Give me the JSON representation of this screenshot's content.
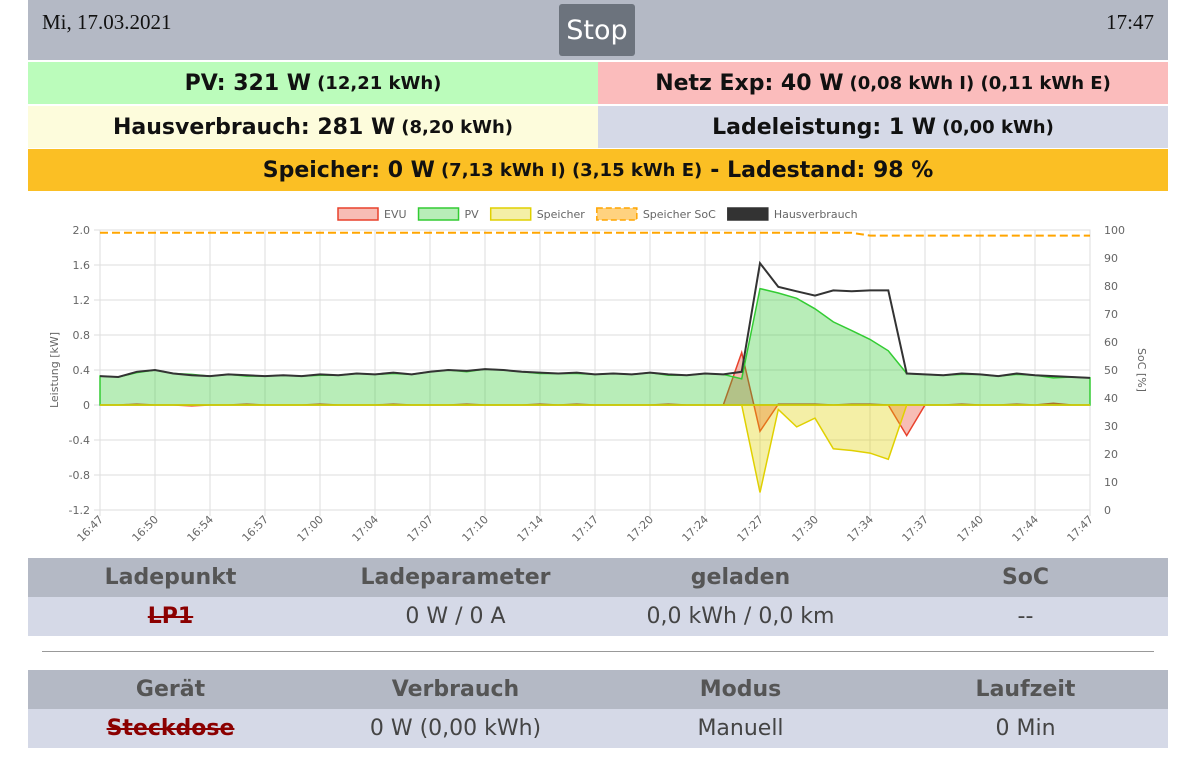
{
  "header": {
    "date": "Mi, 17.03.2021",
    "button": "Stop",
    "time": "17:47"
  },
  "status": {
    "pv": {
      "main": "PV: 321 W",
      "sub": "(12,21 kWh)"
    },
    "netz": {
      "main": "Netz Exp: 40 W",
      "sub": "(0,08 kWh I) (0,11 kWh E)"
    },
    "haus": {
      "main": "Hausverbrauch: 281 W",
      "sub": "(8,20 kWh)"
    },
    "lade": {
      "main": "Ladeleistung: 1 W",
      "sub": "(0,00 kWh)"
    },
    "speicher": {
      "main": "Speicher: 0 W",
      "sub": "(7,13 kWh I) (3,15 kWh E)",
      "tail": "- Ladestand: 98 %"
    }
  },
  "chart_data": {
    "type": "area",
    "y_label": "Leistung [kW]",
    "y2_label": "SoC [%]",
    "grid": true,
    "legend": "top",
    "categories": [
      "16:47",
      null,
      null,
      "16:50",
      null,
      null,
      "16:54",
      null,
      null,
      "16:57",
      null,
      null,
      "17:00",
      null,
      null,
      "17:04",
      null,
      null,
      "17:07",
      null,
      null,
      "17:10",
      null,
      null,
      "17:14",
      null,
      null,
      "17:17",
      null,
      null,
      "17:20",
      null,
      null,
      "17:24",
      null,
      null,
      "17:27",
      null,
      null,
      "17:30",
      null,
      null,
      "17:34",
      null,
      null,
      "17:37",
      null,
      null,
      "17:40",
      null,
      null,
      "17:44",
      null,
      null,
      "17:47"
    ],
    "ylim": [
      -1.2,
      2.0
    ],
    "yticks": [
      -1.2,
      -0.8,
      -0.4,
      0,
      0.4,
      0.8,
      1.2,
      1.6,
      {
        "value": 2,
        "label": "2.0"
      }
    ],
    "y2lim": [
      0,
      100
    ],
    "y2ticks": [
      0,
      10,
      20,
      30,
      40,
      50,
      60,
      70,
      80,
      90,
      100
    ],
    "series": [
      {
        "name": "EVU",
        "color": "#e8412c",
        "fill": true,
        "values": [
          0,
          0,
          0.01,
          0,
          0,
          -0.01,
          0,
          0,
          0.01,
          0,
          0,
          0,
          0.01,
          0,
          0,
          0,
          0.01,
          0,
          0,
          0,
          0.01,
          0,
          0,
          0,
          0.01,
          0,
          0.01,
          0,
          0,
          0,
          0,
          0.01,
          0,
          0,
          0,
          0.6,
          -0.3,
          0.01,
          0.01,
          0.01,
          0,
          0.01,
          0.01,
          0,
          -0.35,
          0,
          0,
          0.01,
          0,
          0,
          0.01,
          0,
          0.02,
          0,
          0
        ]
      },
      {
        "name": "PV",
        "color": "#33cc33",
        "fill": true,
        "values": [
          0.33,
          0.32,
          0.37,
          0.4,
          0.36,
          0.35,
          0.33,
          0.35,
          0.33,
          0.33,
          0.34,
          0.33,
          0.34,
          0.34,
          0.36,
          0.35,
          0.36,
          0.35,
          0.38,
          0.4,
          0.38,
          0.41,
          0.4,
          0.38,
          0.36,
          0.36,
          0.36,
          0.35,
          0.36,
          0.35,
          0.37,
          0.34,
          0.34,
          0.36,
          0.35,
          0.3,
          1.33,
          1.28,
          1.22,
          1.1,
          0.95,
          0.85,
          0.75,
          0.62,
          0.36,
          0.35,
          0.34,
          0.35,
          0.35,
          0.33,
          0.35,
          0.34,
          0.31,
          0.32,
          0.31
        ]
      },
      {
        "name": "Speicher",
        "color": "#e0d000",
        "fill": true,
        "values": [
          0,
          0,
          0,
          0,
          0,
          0,
          0,
          0,
          0,
          0,
          0,
          0,
          0,
          0,
          0,
          0,
          0,
          0,
          0,
          0,
          0,
          0,
          0,
          0,
          0,
          0,
          0,
          0,
          0,
          0,
          0,
          0,
          0,
          0,
          0,
          0,
          -1.0,
          -0.05,
          -0.25,
          -0.15,
          -0.5,
          -0.52,
          -0.55,
          -0.62,
          0,
          0,
          0,
          0,
          0,
          0,
          0,
          0,
          0,
          0,
          0
        ]
      },
      {
        "name": "Speicher SoC",
        "color": "#ffa500",
        "fill": false,
        "dash": true,
        "axis": "y2",
        "values": [
          99,
          99,
          99,
          99,
          99,
          99,
          99,
          99,
          99,
          99,
          99,
          99,
          99,
          99,
          99,
          99,
          99,
          99,
          99,
          99,
          99,
          99,
          99,
          99,
          99,
          99,
          99,
          99,
          99,
          99,
          99,
          99,
          99,
          99,
          99,
          99,
          99,
          99,
          99,
          99,
          99,
          99,
          98,
          98,
          98,
          98,
          98,
          98,
          98,
          98,
          98,
          98,
          98,
          98,
          98
        ]
      },
      {
        "name": "Hausverbrauch",
        "color": "#333333",
        "fill": false,
        "values": [
          0.33,
          0.32,
          0.38,
          0.4,
          0.36,
          0.34,
          0.33,
          0.35,
          0.34,
          0.33,
          0.34,
          0.33,
          0.35,
          0.34,
          0.36,
          0.35,
          0.37,
          0.35,
          0.38,
          0.4,
          0.39,
          0.41,
          0.4,
          0.38,
          0.37,
          0.36,
          0.37,
          0.35,
          0.36,
          0.35,
          0.37,
          0.35,
          0.34,
          0.36,
          0.35,
          0.38,
          1.62,
          1.35,
          1.3,
          1.25,
          1.31,
          1.3,
          1.31,
          1.31,
          0.36,
          0.35,
          0.34,
          0.36,
          0.35,
          0.33,
          0.36,
          0.34,
          0.33,
          0.32,
          0.31
        ]
      }
    ]
  },
  "lp_table": {
    "headers": [
      "Ladepunkt",
      "Ladeparameter",
      "geladen",
      "SoC"
    ],
    "rows": [
      [
        "LP1",
        "0 W / 0 A",
        "0,0 kWh / 0,0 km",
        "--"
      ]
    ]
  },
  "device_table": {
    "headers": [
      "Gerät",
      "Verbrauch",
      "Modus",
      "Laufzeit"
    ],
    "rows": [
      [
        "Steckdose",
        "0 W (0,00 kWh)",
        "Manuell",
        "0 Min"
      ]
    ]
  }
}
